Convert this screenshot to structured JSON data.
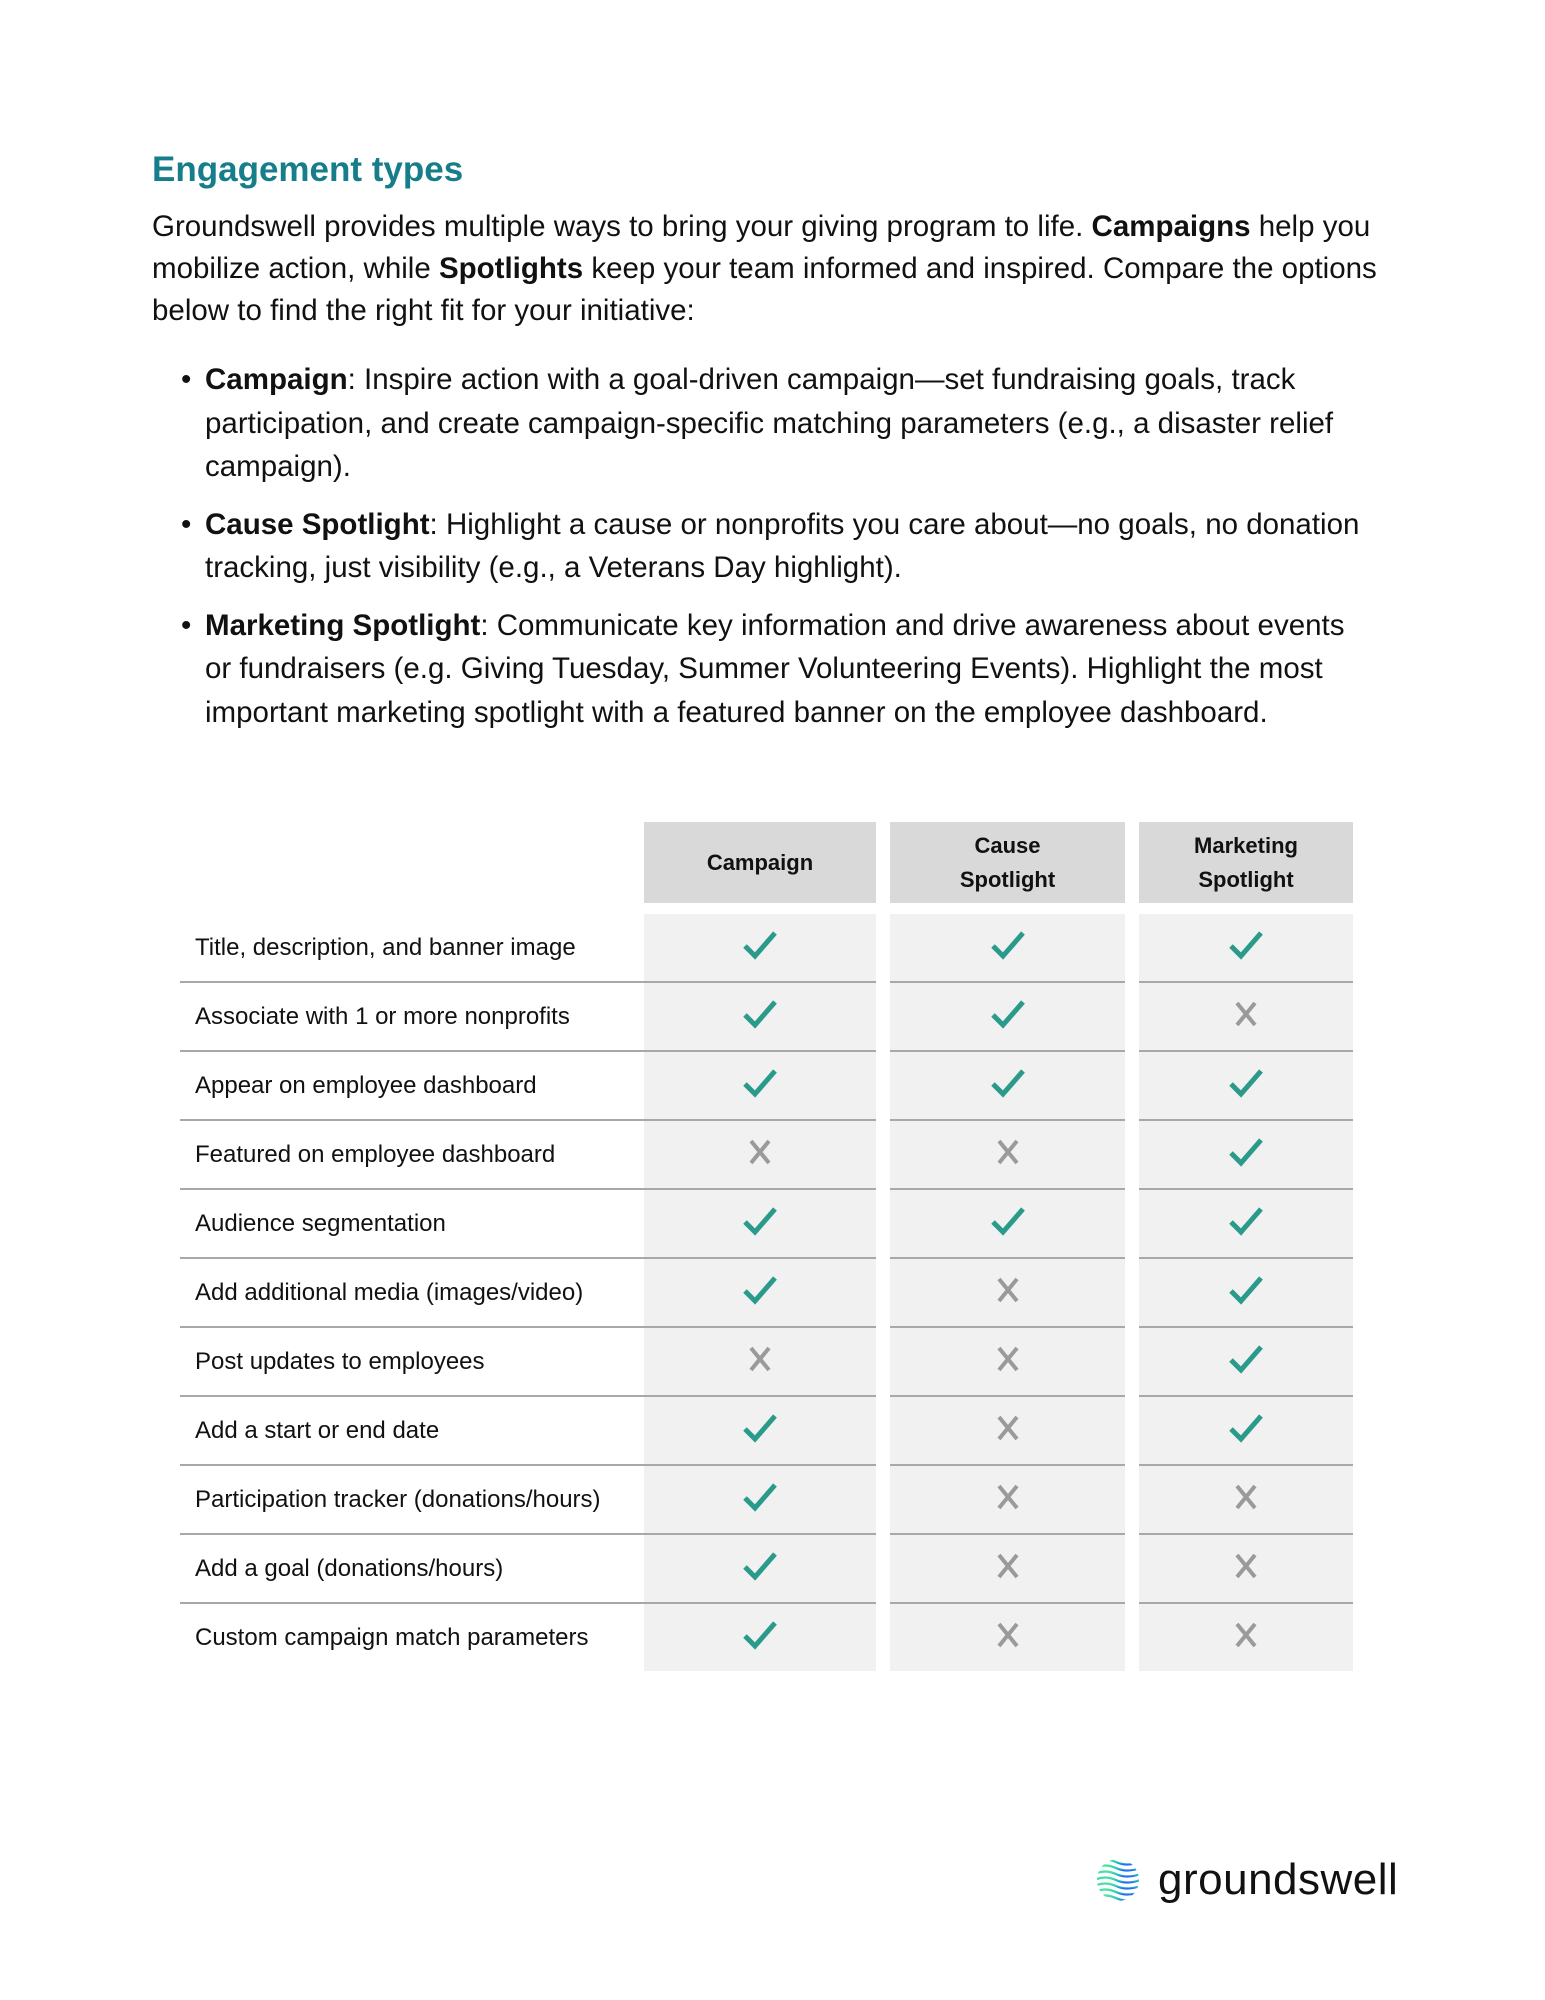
{
  "heading": "Engagement types",
  "intro": [
    {
      "t": "Groundswell provides multiple ways to bring your giving program to life. ",
      "b": false
    },
    {
      "t": "Campaigns",
      "b": true
    },
    {
      "t": " help you mobilize action, while ",
      "b": false
    },
    {
      "t": "Spotlights",
      "b": true
    },
    {
      "t": " keep your team informed and inspired. Compare the options below to find the right fit for your initiative:",
      "b": false
    }
  ],
  "bullets": [
    {
      "term": "Campaign",
      "text": ": Inspire action with a goal-driven campaign—set fundraising goals, track participation, and create campaign-specific matching parameters (e.g., a disaster relief campaign)."
    },
    {
      "term": "Cause Spotlight",
      "text": ": Highlight a cause or nonprofits you care about—no goals, no donation tracking, just visibility (e.g., a Veterans Day highlight)."
    },
    {
      "term": "Marketing Spotlight",
      "text": ": Communicate key information and drive awareness about events or fundraisers (e.g. Giving Tuesday, Summer Volunteering Events). Highlight the most important marketing spotlight with a featured banner on the employee dashboard."
    }
  ],
  "table": {
    "columns": [
      {
        "line1": "Campaign",
        "line2": ""
      },
      {
        "line1": "Cause",
        "line2": "Spotlight"
      },
      {
        "line1": "Marketing",
        "line2": "Spotlight"
      }
    ],
    "rows": [
      {
        "label": "Title, description, and banner image",
        "values": [
          true,
          true,
          true
        ]
      },
      {
        "label": "Associate with 1 or more nonprofits",
        "values": [
          true,
          true,
          false
        ]
      },
      {
        "label": "Appear on employee dashboard",
        "values": [
          true,
          true,
          true
        ]
      },
      {
        "label": "Featured on employee dashboard",
        "values": [
          false,
          false,
          true
        ]
      },
      {
        "label": "Audience segmentation",
        "values": [
          true,
          true,
          true
        ]
      },
      {
        "label": "Add additional media (images/video)",
        "values": [
          true,
          false,
          true
        ]
      },
      {
        "label": "Post updates to employees",
        "values": [
          false,
          false,
          true
        ]
      },
      {
        "label": "Add a start or end date",
        "values": [
          true,
          false,
          true
        ]
      },
      {
        "label": "Participation tracker (donations/hours)",
        "values": [
          true,
          false,
          false
        ]
      },
      {
        "label": "Add a goal (donations/hours)",
        "values": [
          true,
          false,
          false
        ]
      },
      {
        "label": "Custom campaign match parameters",
        "values": [
          true,
          false,
          false
        ]
      }
    ]
  },
  "icons": {
    "yes": "check-icon",
    "no": "x-icon"
  },
  "colors": {
    "heading": "#167d8b",
    "check": "#2a9a8a",
    "cross": "#9a9a9a"
  },
  "logo": {
    "text": "groundswell"
  }
}
